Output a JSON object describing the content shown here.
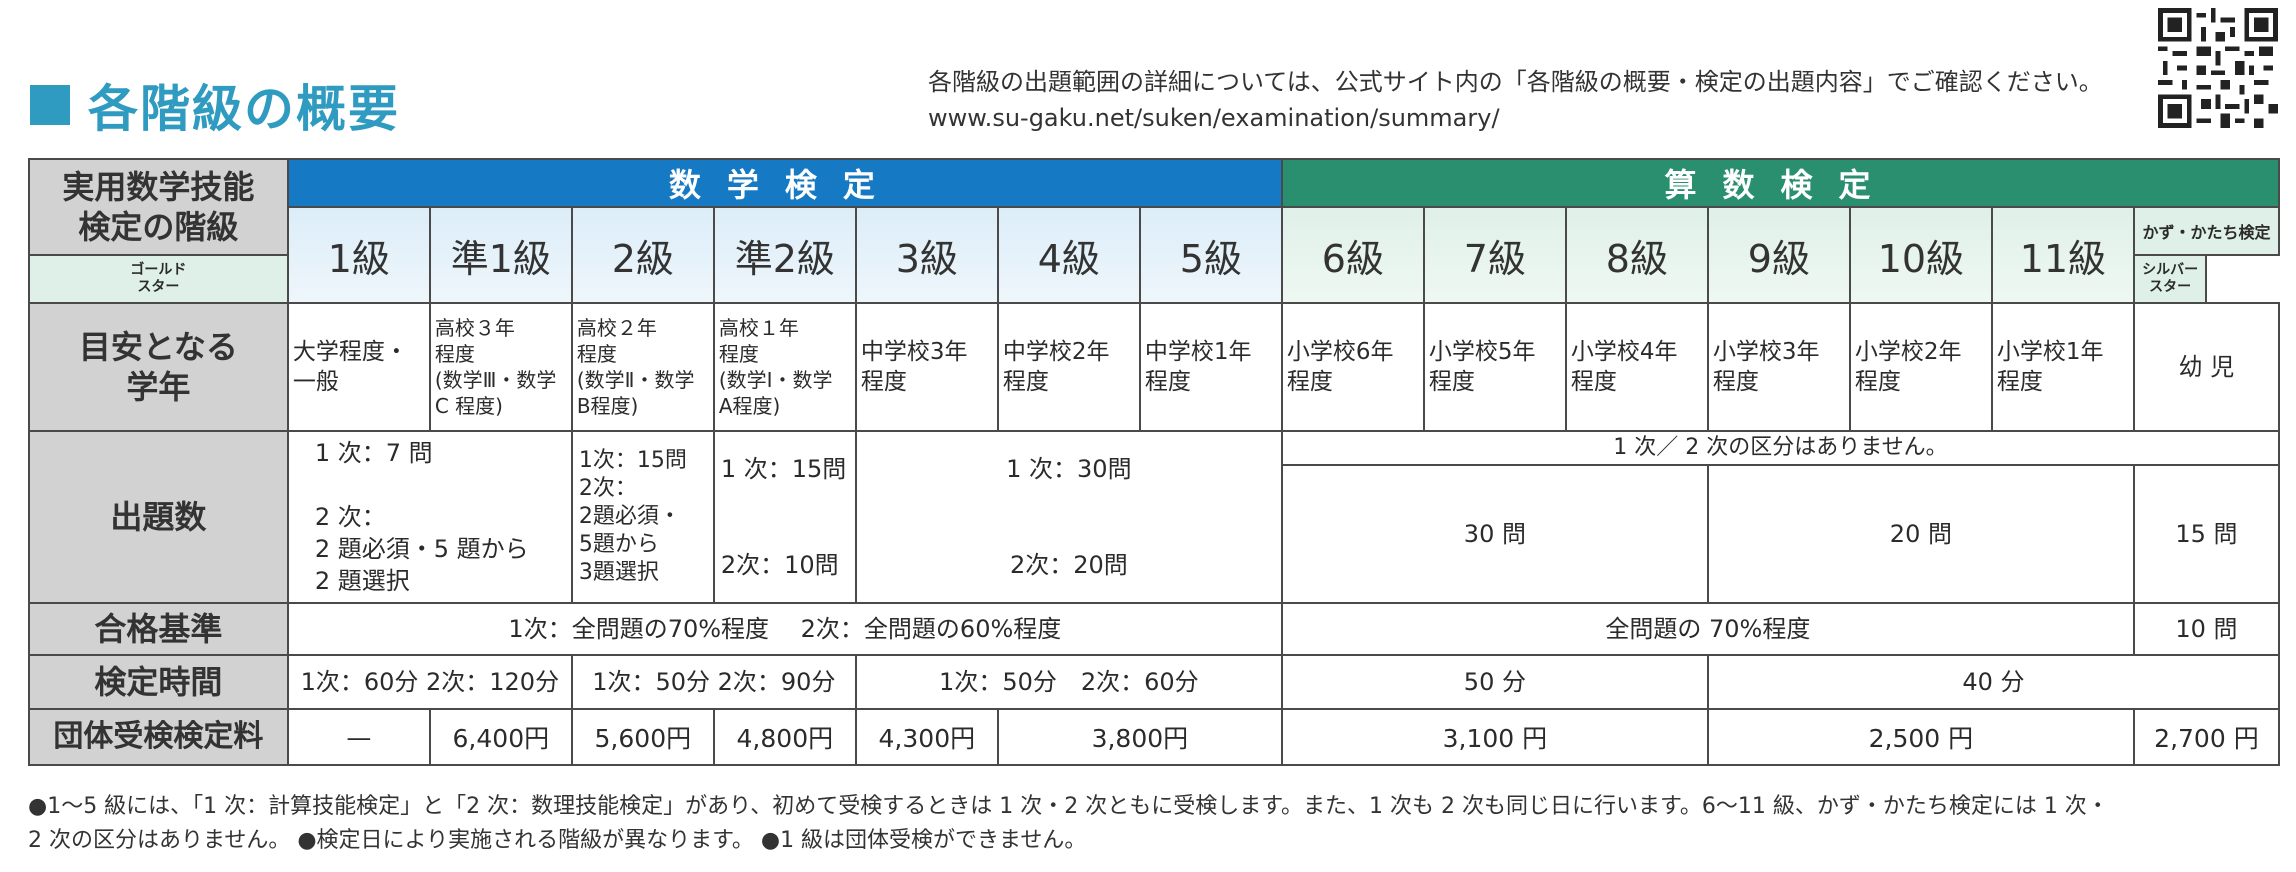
{
  "header": {
    "title": "各階級の概要",
    "note_line1": "各階級の出題範囲の詳細については、公式サイト内の「各階級の概要・検定の出題内容」でご確認ください。",
    "note_line2": "www.su-gaku.net/suken/examination/summary/"
  },
  "colors": {
    "accent": "#2f9bc0",
    "math_band": "#1579c4",
    "arith_band": "#2a8f6e",
    "row_head": "#d2d2d2"
  },
  "table": {
    "corner_label": "実用数学技能\n検定の階級",
    "math_band": "数学検定",
    "arith_band": "算数検定",
    "levels": [
      "1級",
      "準1級",
      "2級",
      "準2級",
      "3級",
      "4級",
      "5級",
      "6級",
      "7級",
      "8級",
      "9級",
      "10級",
      "11級"
    ],
    "kazu_label": "かず・かたち検定",
    "gold": "ゴールド\nスター",
    "silver": "シルバー\nスター",
    "grade_label": "目安となる\n学年",
    "grades": [
      "大学程度・\n一般",
      "高校３年\n程度\n(数学Ⅲ・数学\nC 程度)",
      "高校２年\n程度\n(数学Ⅱ・数学\nB程度)",
      "高校１年\n程度\n(数学Ⅰ・数学\nA程度)",
      "中学校3年\n程度",
      "中学校2年\n程度",
      "中学校1年\n程度",
      "小学校6年\n程度",
      "小学校5年\n程度",
      "小学校4年\n程度",
      "小学校3年\n程度",
      "小学校2年\n程度",
      "小学校1年\n程度",
      "幼 児"
    ],
    "questions_label": "出題数",
    "q_1": "1 次：7 問\n\n2 次：\n2 題必須・5 題から\n2 題選択",
    "q_2": "1次：15問\n2次：\n2題必須・\n5題から\n3題選択",
    "q_p2": "1 次：15問\n\n\n2次：10問",
    "q_3to5": "1 次：30問\n\n\n2次：20問",
    "q_no_division": "1 次／ 2 次の区分はありません。",
    "q_6to8": "30 問",
    "q_9to11": "20 問",
    "q_kazu": "15 問",
    "pass_label": "合格基準",
    "pass_math": "1次：全問題の70%程度　 2次：全問題の60%程度",
    "pass_arith": "全問題の 70%程度",
    "pass_kazu": "10 問",
    "time_label": "検定時間",
    "time_1": "1次：60分 2次：120分",
    "time_2": "1次：50分 2次：90分",
    "time_3": "1次：50分　2次：60分",
    "time_6to8": "50 分",
    "time_9to11": "40 分",
    "fee_label": "団体受検検定料",
    "fee_1": "—",
    "fee_p1": "6,400円",
    "fee_2": "5,600円",
    "fee_p2": "4,800円",
    "fee_3": "4,300円",
    "fee_45": "3,800円",
    "fee_678": "3,100 円",
    "fee_91011": "2,500 円",
    "fee_kazu": "2,700 円"
  },
  "footer": {
    "line1": "●1～5 級には、「1 次：計算技能検定」と「2 次：数理技能検定」があり、初めて受検するときは 1 次・2 次ともに受検します。また、1 次も 2 次も同じ日に行います。6～11 級、かず・かたち検定には 1 次・",
    "line2": "2 次の区分はありません。 ●検定日により実施される階級が異なります。 ●1 級は団体受検ができません。"
  }
}
